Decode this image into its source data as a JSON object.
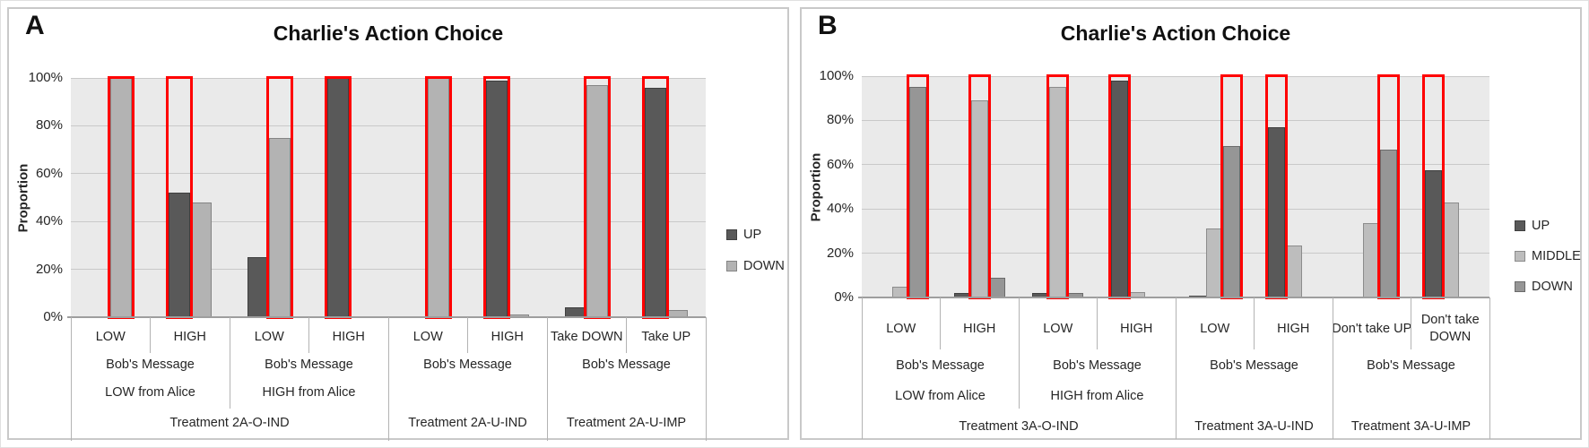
{
  "chart_data": [
    {
      "type": "bar",
      "panel_label": "A",
      "title": "Charlie's Action Choice",
      "ylabel": "Proportion",
      "ylim": [
        0,
        100
      ],
      "y_ticks": [
        0,
        20,
        40,
        60,
        80,
        100
      ],
      "y_tick_suffix": "%",
      "grid": true,
      "legend_position": "right",
      "categories": [
        "LOW",
        "HIGH",
        "LOW",
        "HIGH",
        "LOW",
        "HIGH",
        "Take DOWN",
        "Take UP"
      ],
      "series": [
        {
          "name": "UP",
          "color": "#595959",
          "border_color": "#3f3f3f",
          "values": [
            0,
            52,
            25,
            100,
            0,
            99,
            4,
            96
          ]
        },
        {
          "name": "DOWN",
          "color": "#b3b3b3",
          "border_color": "#848484",
          "values": [
            100,
            48,
            75,
            0,
            100,
            1,
            97,
            3
          ]
        }
      ],
      "prediction_boxes": [
        "DOWN",
        "UP",
        "DOWN",
        "UP",
        "DOWN",
        "UP",
        "DOWN",
        "UP"
      ],
      "prediction_box_color": "#ff0000",
      "category_groups": [
        {
          "label_lines": [
            "Bob's Message",
            "LOW from Alice"
          ],
          "start": 0,
          "end": 1
        },
        {
          "label_lines": [
            "Bob's Message",
            "HIGH from Alice"
          ],
          "start": 2,
          "end": 3
        },
        {
          "label_lines": [
            "Bob's Message"
          ],
          "start": 4,
          "end": 5
        },
        {
          "label_lines": [
            "Bob's Message"
          ],
          "start": 6,
          "end": 7
        }
      ],
      "treatment_groups": [
        {
          "label": "Treatment 2A-O-IND",
          "start": 0,
          "end": 3
        },
        {
          "label": "Treatment 2A-U-IND",
          "start": 4,
          "end": 5
        },
        {
          "label": "Treatment 2A-U-IMP",
          "start": 6,
          "end": 7
        }
      ]
    },
    {
      "type": "bar",
      "panel_label": "B",
      "title": "Charlie's Action Choice",
      "ylabel": "Proportion",
      "ylim": [
        0,
        100
      ],
      "y_ticks": [
        0,
        20,
        40,
        60,
        80,
        100
      ],
      "y_tick_suffix": "%",
      "grid": true,
      "legend_position": "right",
      "categories": [
        "LOW",
        "HIGH",
        "LOW",
        "HIGH",
        "LOW",
        "HIGH",
        "Don't take UP",
        "Don't take DOWN"
      ],
      "series": [
        {
          "name": "UP",
          "color": "#595959",
          "border_color": "#3f3f3f",
          "values": [
            0,
            2,
            2,
            98,
            1,
            77,
            0,
            57.5
          ]
        },
        {
          "name": "MIDDLE",
          "color": "#bdbdbd",
          "border_color": "#8c8c8c",
          "values": [
            5,
            89,
            95,
            2.5,
            31,
            23.5,
            33.5,
            43
          ]
        },
        {
          "name": "DOWN",
          "color": "#969696",
          "border_color": "#6b6b6b",
          "values": [
            95,
            9,
            2,
            0,
            68.5,
            0,
            67,
            0
          ]
        }
      ],
      "prediction_boxes": [
        "DOWN",
        "MIDDLE",
        "MIDDLE",
        "UP",
        "DOWN",
        "UP",
        "DOWN",
        "UP"
      ],
      "prediction_box_color": "#ff0000",
      "category_groups": [
        {
          "label_lines": [
            "Bob's Message",
            "LOW from Alice"
          ],
          "start": 0,
          "end": 1
        },
        {
          "label_lines": [
            "Bob's Message",
            "HIGH from Alice"
          ],
          "start": 2,
          "end": 3
        },
        {
          "label_lines": [
            "Bob's Message"
          ],
          "start": 4,
          "end": 5
        },
        {
          "label_lines": [
            "Bob's Message"
          ],
          "start": 6,
          "end": 7
        }
      ],
      "treatment_groups": [
        {
          "label": "Treatment 3A-O-IND",
          "start": 0,
          "end": 3
        },
        {
          "label": "Treatment 3A-U-IND",
          "start": 4,
          "end": 5
        },
        {
          "label": "Treatment 3A-U-IMP",
          "start": 6,
          "end": 7
        }
      ]
    }
  ]
}
